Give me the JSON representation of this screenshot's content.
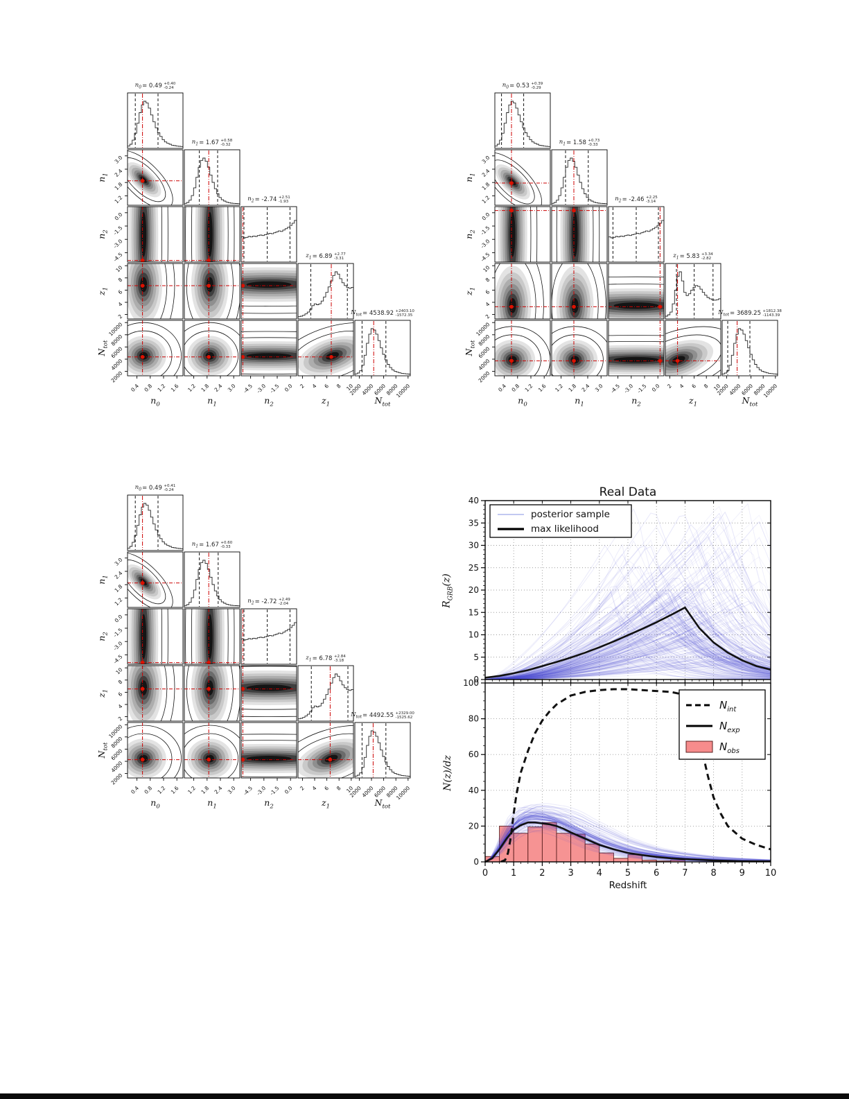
{
  "page": {
    "background": "#ffffff",
    "bottom_bar_color": "#0a0a0a"
  },
  "colors": {
    "truth_red": "#cc0000",
    "dot_red": "#dd1100",
    "sample_blue": "#5353d6",
    "hist_red": "#f58080",
    "hist_edge": "#5a1f1f",
    "line_black": "#111111",
    "grid_gray": "#999999"
  },
  "corner_axes": {
    "labels": [
      {
        "base": "n",
        "sub": "0"
      },
      {
        "base": "n",
        "sub": "1"
      },
      {
        "base": "n",
        "sub": "2"
      },
      {
        "base": "z",
        "sub": "1"
      },
      {
        "base": "N",
        "sub": "tot"
      }
    ],
    "ticks": [
      [
        "0.4",
        "0.8",
        "1.2",
        "1.6"
      ],
      [
        "1.2",
        "1.8",
        "2.4",
        "3.0"
      ],
      [
        "-4.5",
        "-3.0",
        "-1.5",
        "0.0"
      ],
      [
        "2",
        "4",
        "6",
        "8",
        "10"
      ],
      [
        "2000",
        "4000",
        "6000",
        "8000",
        "10000"
      ]
    ],
    "approx_ranges": {
      "n0": [
        0,
        1.8
      ],
      "n1": [
        0.9,
        3.3
      ],
      "n2": [
        -5.5,
        0.2
      ],
      "z1": [
        1.5,
        10.5
      ],
      "Ntot": [
        1300,
        10500
      ]
    }
  },
  "chart_data": [
    {
      "type": "corner",
      "name": "corner-plot-1",
      "estimates": [
        {
          "param": "n0",
          "value": "0.49",
          "plus": "+0.40",
          "minus": "-0.24"
        },
        {
          "param": "n1",
          "value": "1.67",
          "plus": "+0.58",
          "minus": "-0.32"
        },
        {
          "param": "n2",
          "value": "-2.74",
          "plus": "+2.51",
          "minus": "-1.93"
        },
        {
          "param": "z1",
          "value": "6.89",
          "plus": "+2.77",
          "minus": "-3.31"
        },
        {
          "param": "Ntot",
          "value": "4538.92",
          "plus": "+2403.10",
          "minus": "-1572.35"
        }
      ]
    },
    {
      "type": "corner",
      "name": "corner-plot-2",
      "estimates": [
        {
          "param": "n0",
          "value": "0.53",
          "plus": "+0.39",
          "minus": "-0.29"
        },
        {
          "param": "n1",
          "value": "1.58",
          "plus": "+0.73",
          "minus": "-0.33"
        },
        {
          "param": "n2",
          "value": "-2.46",
          "plus": "+2.25",
          "minus": "-3.14"
        },
        {
          "param": "z1",
          "value": "5.83",
          "plus": "+3.34",
          "minus": "-2.82"
        },
        {
          "param": "Ntot",
          "value": "3689.25",
          "plus": "+1812.38",
          "minus": "-1143.39"
        }
      ]
    },
    {
      "type": "corner",
      "name": "corner-plot-3",
      "estimates": [
        {
          "param": "n0",
          "value": "0.49",
          "plus": "+0.41",
          "minus": "-0.24"
        },
        {
          "param": "n1",
          "value": "1.67",
          "plus": "+0.60",
          "minus": "-0.33"
        },
        {
          "param": "n2",
          "value": "-2.72",
          "plus": "+2.49",
          "minus": "-2.04"
        },
        {
          "param": "z1",
          "value": "6.78",
          "plus": "+2.84",
          "minus": "-3.18"
        },
        {
          "param": "Ntot",
          "value": "4492.55",
          "plus": "+2329.00",
          "minus": "-1525.62"
        }
      ]
    },
    {
      "type": "line",
      "name": "rgrb-vs-redshift",
      "title": "Real Data",
      "ylabel_parts": {
        "base": "R",
        "sub": "GRB",
        "arg": "(z)"
      },
      "xlim": [
        0,
        10
      ],
      "ylim": [
        0,
        40
      ],
      "yticks": [
        0,
        5,
        10,
        15,
        20,
        25,
        30,
        35,
        40
      ],
      "legend": [
        "posterior sample",
        "max likelihood"
      ],
      "posterior_samples": {
        "count": 170,
        "color": "#5353d6"
      },
      "max_likelihood": {
        "x": [
          0,
          0.5,
          1,
          1.5,
          2,
          2.5,
          3,
          3.5,
          4,
          4.5,
          5,
          5.5,
          6,
          6.5,
          7,
          7.5,
          8,
          8.5,
          9,
          9.5,
          10
        ],
        "y": [
          0.4,
          0.8,
          1.4,
          2.1,
          3.0,
          3.9,
          4.9,
          6.0,
          7.2,
          8.5,
          9.9,
          11.3,
          12.8,
          14.4,
          16.1,
          11.5,
          8.3,
          6.0,
          4.3,
          3.0,
          2.2
        ]
      }
    },
    {
      "type": "bar+line",
      "name": "nz-vs-redshift",
      "ylabel_parts": {
        "base": "N",
        "rest": "(z)/dz"
      },
      "xlabel": "Redshift",
      "xlim": [
        0,
        10
      ],
      "ylim": [
        0,
        100
      ],
      "yticks": [
        0,
        20,
        40,
        60,
        80,
        100
      ],
      "xticks": [
        0,
        1,
        2,
        3,
        4,
        5,
        6,
        7,
        8,
        9,
        10
      ],
      "legend": [
        {
          "base": "N",
          "sub": "int",
          "style": "dashed"
        },
        {
          "base": "N",
          "sub": "exp",
          "style": "solid"
        },
        {
          "base": "N",
          "sub": "obs",
          "style": "patch"
        }
      ],
      "N_int": {
        "x": [
          0.55,
          0.7,
          0.8,
          0.9,
          1,
          1.1,
          1.25,
          1.5,
          1.75,
          2,
          2.25,
          2.5,
          3,
          3.5,
          4,
          4.5,
          5,
          5.5,
          6,
          6.5,
          6.8,
          7,
          7.2,
          7.4,
          7.6,
          7.8,
          8,
          8.25,
          8.5,
          9,
          9.5,
          10
        ],
        "y": [
          0,
          1,
          5,
          14,
          27,
          38,
          50,
          62,
          72,
          79,
          84,
          88,
          93,
          95,
          96,
          96.5,
          96.5,
          96,
          95.5,
          95,
          94,
          92,
          86,
          76,
          62,
          48,
          36,
          27,
          20,
          13,
          9.5,
          7
        ]
      },
      "N_exp": {
        "x": [
          0,
          0.25,
          0.5,
          0.75,
          1,
          1.25,
          1.5,
          1.75,
          2,
          2.25,
          2.5,
          2.75,
          3,
          3.5,
          4,
          4.5,
          5,
          5.5,
          6,
          6.5,
          7,
          8,
          9,
          10
        ],
        "y": [
          0,
          2,
          7,
          13,
          18,
          20.5,
          22,
          22,
          21.5,
          21,
          20,
          18.5,
          16.5,
          13,
          9.5,
          7,
          5,
          3.8,
          2.8,
          2,
          1.5,
          0.8,
          0.4,
          0.3
        ]
      },
      "N_obs": {
        "bin_start": 0,
        "bin_width": 0.5,
        "heights": [
          3,
          20,
          16,
          19.5,
          22,
          16,
          15.5,
          10,
          5,
          2,
          4,
          1,
          0.5,
          1
        ]
      }
    }
  ],
  "render": {
    "hist": {
      "n0": [
        0.02,
        0.06,
        0.15,
        0.3,
        0.52,
        0.75,
        0.92,
        1.0,
        0.96,
        0.85,
        0.7,
        0.55,
        0.42,
        0.31,
        0.23,
        0.16,
        0.11,
        0.08,
        0.06,
        0.04,
        0.03,
        0.02,
        0.015,
        0.01
      ],
      "n1": [
        0.01,
        0.03,
        0.08,
        0.18,
        0.35,
        0.58,
        0.8,
        0.95,
        1.0,
        0.93,
        0.8,
        0.63,
        0.47,
        0.33,
        0.22,
        0.14,
        0.09,
        0.06,
        0.04,
        0.025,
        0.015,
        0.01,
        0.008,
        0.005
      ],
      "n2": [
        0.52,
        0.5,
        0.51,
        0.53,
        0.52,
        0.54,
        0.53,
        0.55,
        0.56,
        0.55,
        0.57,
        0.58,
        0.6,
        0.59,
        0.61,
        0.63,
        0.65,
        0.64,
        0.67,
        0.7,
        0.73,
        0.77,
        0.82,
        0.88
      ],
      "z1_a": [
        0.02,
        0.03,
        0.05,
        0.08,
        0.12,
        0.18,
        0.26,
        0.3,
        0.28,
        0.3,
        0.36,
        0.45,
        0.55,
        0.67,
        0.8,
        0.92,
        1.0,
        0.95,
        0.85,
        0.76,
        0.7,
        0.66,
        0.64,
        0.66
      ],
      "z1_b": [
        0.03,
        0.06,
        0.12,
        0.3,
        0.6,
        0.9,
        1.0,
        0.8,
        0.55,
        0.48,
        0.52,
        0.6,
        0.66,
        0.7,
        0.68,
        0.62,
        0.55,
        0.49,
        0.44,
        0.41,
        0.39,
        0.38,
        0.39,
        0.41
      ],
      "Ntot": [
        0.01,
        0.03,
        0.08,
        0.2,
        0.42,
        0.68,
        0.88,
        1.0,
        0.97,
        0.88,
        0.74,
        0.58,
        0.44,
        0.32,
        0.22,
        0.15,
        0.1,
        0.07,
        0.05,
        0.035,
        0.025,
        0.018,
        0.012,
        0.008
      ]
    },
    "corners": [
      {
        "truth": {
          "n0": 0.27,
          "n1": 0.44,
          "n2": 0.03,
          "z1": 0.6,
          "Ntot": 0.34
        },
        "q": {
          "n0": [
            0.14,
            0.55
          ],
          "n1": [
            0.27,
            0.6
          ],
          "n2": [
            0.05,
            0.47,
            0.88
          ],
          "z1": [
            0.23,
            0.89
          ],
          "Ntot": [
            0.13,
            0.56
          ]
        },
        "z1_hist": "z1_a"
      },
      {
        "truth": {
          "n0": 0.3,
          "n1": 0.4,
          "n2": 0.93,
          "z1": 0.22,
          "Ntot": 0.27
        },
        "q": {
          "n0": [
            0.12,
            0.52
          ],
          "n1": [
            0.25,
            0.66
          ],
          "n2": [
            0.08,
            0.5,
            0.9
          ],
          "z1": [
            0.2,
            0.52,
            0.86
          ],
          "Ntot": [
            0.1,
            0.5
          ]
        },
        "z1_hist": "z1_b"
      },
      {
        "truth": {
          "n0": 0.27,
          "n1": 0.44,
          "n2": 0.03,
          "z1": 0.58,
          "Ntot": 0.33
        },
        "q": {
          "n0": [
            0.14,
            0.55
          ],
          "n1": [
            0.27,
            0.61
          ],
          "n2": [
            0.05,
            0.47,
            0.88
          ],
          "z1": [
            0.24,
            0.9
          ],
          "Ntot": [
            0.13,
            0.56
          ]
        },
        "z1_hist": "z1_a"
      }
    ]
  }
}
